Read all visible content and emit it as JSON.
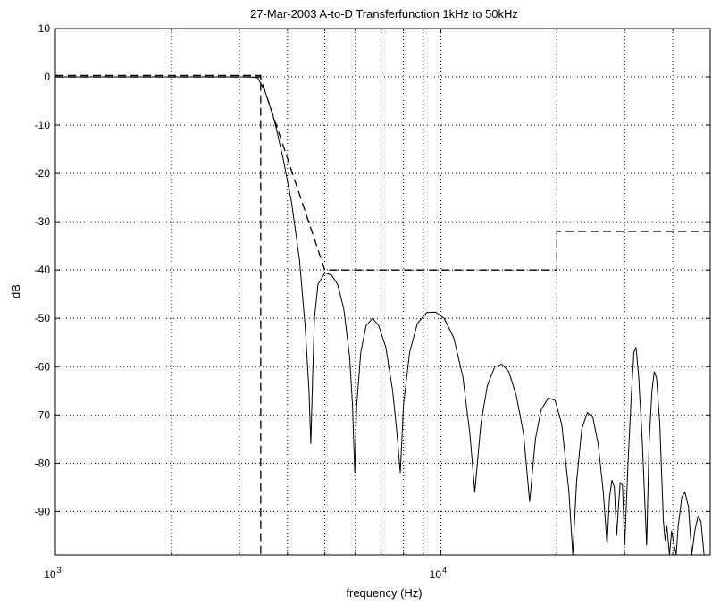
{
  "chart_data": {
    "type": "line",
    "title": "27-Mar-2003 A-to-D Transferfunction 1kHz to 50kHz",
    "xlabel": "frequency (Hz)",
    "ylabel": "dB",
    "x_scale": "log",
    "xlim": [
      1000,
      50000
    ],
    "ylim": [
      -99,
      10
    ],
    "x_major_ticks": [
      {
        "value": 1000,
        "base": "10",
        "exp": "3"
      },
      {
        "value": 10000,
        "base": "10",
        "exp": "4"
      }
    ],
    "x_minor_grid": [
      2000,
      3000,
      4000,
      5000,
      6000,
      7000,
      8000,
      9000,
      20000,
      30000,
      40000
    ],
    "y_ticks": [
      10,
      0,
      -10,
      -20,
      -30,
      -40,
      -50,
      -60,
      -70,
      -80,
      -90
    ],
    "y_tick_labels": [
      "10",
      "0",
      "-10",
      "-20",
      "-30",
      "-40",
      "-50",
      "-60",
      "-70",
      "-80",
      "-90"
    ],
    "grid": true,
    "series": [
      {
        "style": "solid",
        "color": "#000000",
        "points": [
          [
            1000,
            0
          ],
          [
            3000,
            0
          ],
          [
            3200,
            0
          ],
          [
            3350,
            -0.2
          ],
          [
            3500,
            -3
          ],
          [
            3700,
            -9
          ],
          [
            3900,
            -17
          ],
          [
            4100,
            -26
          ],
          [
            4300,
            -38
          ],
          [
            4450,
            -52
          ],
          [
            4550,
            -65
          ],
          [
            4600,
            -76
          ],
          [
            4650,
            -62
          ],
          [
            4700,
            -50
          ],
          [
            4800,
            -43
          ],
          [
            5000,
            -40.6
          ],
          [
            5200,
            -41
          ],
          [
            5400,
            -43
          ],
          [
            5600,
            -48
          ],
          [
            5800,
            -58
          ],
          [
            5900,
            -68
          ],
          [
            5980,
            -82
          ],
          [
            6050,
            -68
          ],
          [
            6200,
            -57
          ],
          [
            6400,
            -51.5
          ],
          [
            6650,
            -50
          ],
          [
            6900,
            -51.5
          ],
          [
            7200,
            -56
          ],
          [
            7500,
            -65
          ],
          [
            7700,
            -74
          ],
          [
            7850,
            -82
          ],
          [
            8000,
            -68
          ],
          [
            8300,
            -57
          ],
          [
            8700,
            -51
          ],
          [
            9200,
            -48.8
          ],
          [
            9700,
            -48.7
          ],
          [
            10200,
            -50
          ],
          [
            10800,
            -54
          ],
          [
            11400,
            -62
          ],
          [
            11900,
            -74
          ],
          [
            12250,
            -86
          ],
          [
            12700,
            -72
          ],
          [
            13200,
            -64
          ],
          [
            13800,
            -60
          ],
          [
            14400,
            -59.5
          ],
          [
            15000,
            -61
          ],
          [
            15700,
            -66
          ],
          [
            16400,
            -74
          ],
          [
            17000,
            -88
          ],
          [
            17600,
            -75
          ],
          [
            18200,
            -69
          ],
          [
            19000,
            -66.5
          ],
          [
            19800,
            -67
          ],
          [
            20600,
            -72
          ],
          [
            21500,
            -86
          ],
          [
            22000,
            -99
          ],
          [
            22500,
            -84
          ],
          [
            23200,
            -73
          ],
          [
            24000,
            -69.5
          ],
          [
            24800,
            -70.5
          ],
          [
            25600,
            -76
          ],
          [
            26400,
            -86
          ],
          [
            27000,
            -97
          ],
          [
            27400,
            -87
          ],
          [
            27800,
            -83.5
          ],
          [
            28200,
            -85
          ],
          [
            28600,
            -95
          ],
          [
            28900,
            -89
          ],
          [
            29200,
            -84
          ],
          [
            29600,
            -84.5
          ],
          [
            30000,
            -97
          ],
          [
            30600,
            -80
          ],
          [
            31200,
            -66
          ],
          [
            31700,
            -57
          ],
          [
            32100,
            -56
          ],
          [
            32600,
            -62
          ],
          [
            33300,
            -75
          ],
          [
            34200,
            -97
          ],
          [
            34700,
            -76
          ],
          [
            35300,
            -65
          ],
          [
            35800,
            -61
          ],
          [
            36300,
            -62.5
          ],
          [
            37000,
            -72
          ],
          [
            37800,
            -92
          ],
          [
            38200,
            -96
          ],
          [
            38600,
            -93
          ],
          [
            39200,
            -99
          ],
          [
            39700,
            -94
          ],
          [
            40200,
            -96.5
          ],
          [
            40800,
            -99
          ],
          [
            41300,
            -93
          ],
          [
            42200,
            -87
          ],
          [
            43000,
            -86
          ],
          [
            43900,
            -89
          ],
          [
            44800,
            -99
          ],
          [
            45600,
            -94
          ],
          [
            46500,
            -91
          ],
          [
            47300,
            -92
          ],
          [
            48200,
            -99
          ]
        ]
      },
      {
        "style": "dashed",
        "color": "#000000",
        "points": [
          [
            1000,
            0
          ],
          [
            3400,
            0
          ],
          [
            5000,
            -40
          ],
          [
            20000,
            -40
          ],
          [
            20000,
            -32
          ],
          [
            50000,
            -32
          ]
        ]
      },
      {
        "style": "dashed",
        "color": "#000000",
        "points": [
          [
            1000,
            0.3
          ],
          [
            3410,
            0.3
          ],
          [
            3410,
            -99
          ]
        ]
      }
    ]
  }
}
